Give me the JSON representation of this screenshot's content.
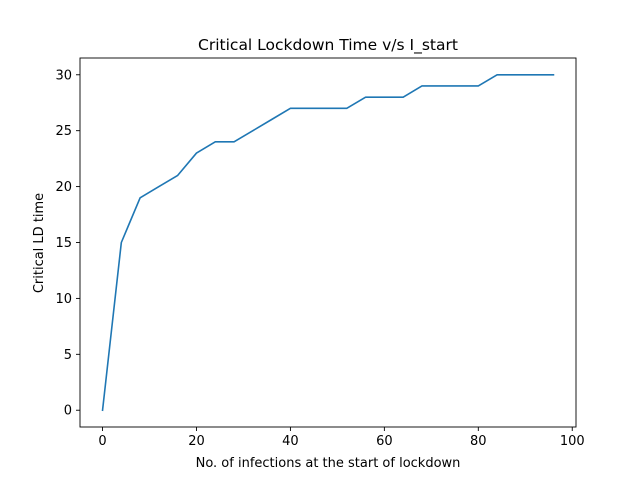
{
  "chart_data": {
    "type": "line",
    "title": "Critical Lockdown Time v/s I_start",
    "xlabel": "No. of infections at the start of lockdown",
    "ylabel": "Critical LD time",
    "xlim": [
      -4.8,
      100.8
    ],
    "ylim": [
      -1.5,
      31.5
    ],
    "x_ticks": [
      0,
      20,
      40,
      60,
      80,
      100
    ],
    "y_ticks": [
      0,
      5,
      10,
      15,
      20,
      25,
      30
    ],
    "grid": false,
    "series": [
      {
        "color": "#1f77b4",
        "x": [
          0,
          4,
          8,
          12,
          16,
          20,
          24,
          28,
          32,
          36,
          40,
          44,
          48,
          52,
          56,
          60,
          64,
          68,
          72,
          76,
          80,
          84,
          88,
          92,
          96
        ],
        "y": [
          0,
          15,
          19,
          20,
          21,
          23,
          24,
          24,
          25,
          26,
          27,
          27,
          27,
          27,
          28,
          28,
          28,
          29,
          29,
          29,
          29,
          30,
          30,
          30,
          30
        ]
      }
    ]
  }
}
